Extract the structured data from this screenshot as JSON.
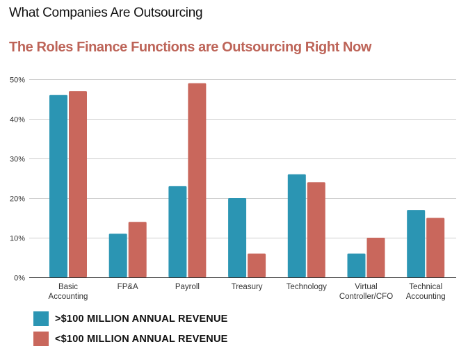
{
  "header": {
    "page_title": "What Companies Are Outsourcing"
  },
  "colors": {
    "series_large": "#2b95b3",
    "series_small": "#c9675c",
    "title_accent": "#bd6458",
    "grid": "#cccccc",
    "axis": "#333333"
  },
  "chart_data": {
    "type": "bar",
    "title": "The Roles Finance Functions are Outsourcing Right Now",
    "xlabel": "",
    "ylabel": "",
    "ylim": [
      0,
      50
    ],
    "yticks": [
      0,
      10,
      20,
      30,
      40,
      50
    ],
    "ytick_labels": [
      "0%",
      "10%",
      "20%",
      "30%",
      "40%",
      "50%"
    ],
    "grid": true,
    "legend_position": "bottom-left",
    "categories": [
      "Basic Accounting",
      "FP&A",
      "Payroll",
      "Treasury",
      "Technology",
      "Virtual Controller/CFO",
      "Technical Accounting"
    ],
    "category_label_lines": [
      [
        "Basic",
        "Accounting"
      ],
      [
        "FP&A"
      ],
      [
        "Payroll"
      ],
      [
        "Treasury"
      ],
      [
        "Technology"
      ],
      [
        "Virtual",
        "Controller/CFO"
      ],
      [
        "Technical",
        "Accounting"
      ]
    ],
    "series": [
      {
        "name": ">$100 MILLION ANNUAL REVENUE",
        "color": "#2b95b3",
        "values": [
          46,
          11,
          23,
          20,
          26,
          6,
          17
        ]
      },
      {
        "name": "<$100 MILLION ANNUAL REVENUE",
        "color": "#c9675c",
        "values": [
          47,
          14,
          49,
          6,
          24,
          10,
          15
        ]
      }
    ],
    "unit": "%"
  }
}
